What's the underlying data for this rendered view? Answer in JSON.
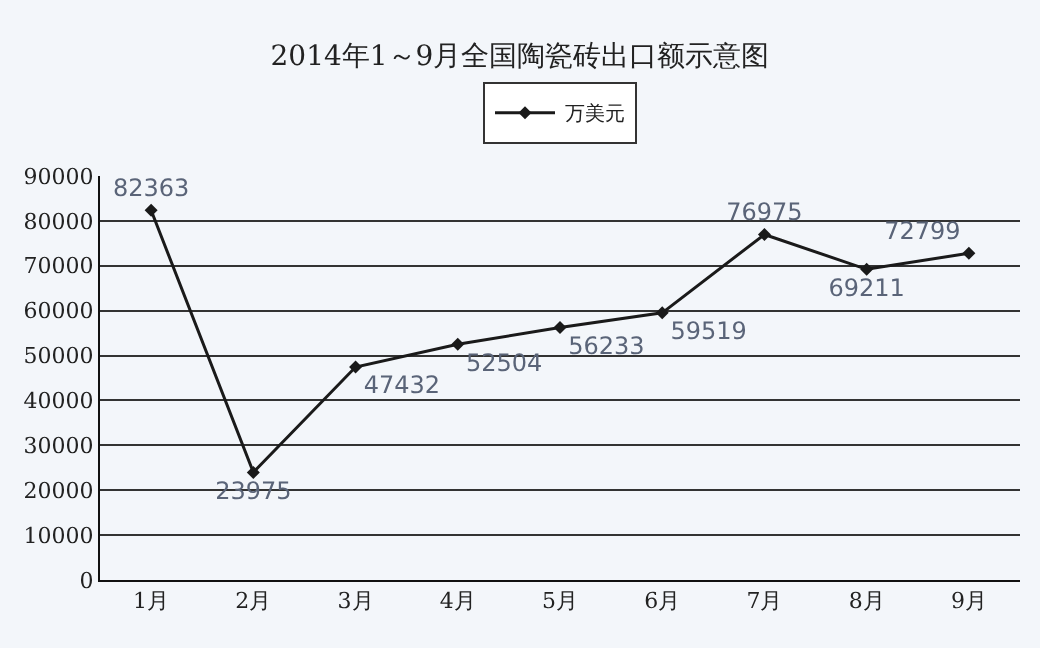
{
  "chart_data": {
    "type": "line",
    "title": "2014年1～9月全国陶瓷砖出口额示意图",
    "categories": [
      "1月",
      "2月",
      "3月",
      "4月",
      "5月",
      "6月",
      "7月",
      "8月",
      "9月"
    ],
    "series": [
      {
        "name": "万美元",
        "color": "#1a1a1a",
        "values": [
          82363,
          23975,
          47432,
          52504,
          56233,
          59519,
          76975,
          69211,
          72799
        ]
      }
    ],
    "ylim": [
      0,
      90000
    ],
    "yticks": [
      0,
      10000,
      20000,
      30000,
      40000,
      50000,
      60000,
      70000,
      80000,
      90000
    ],
    "grid": "y",
    "legend": "top",
    "marker": "diamond",
    "line_style": "solid",
    "data_labels": true
  }
}
